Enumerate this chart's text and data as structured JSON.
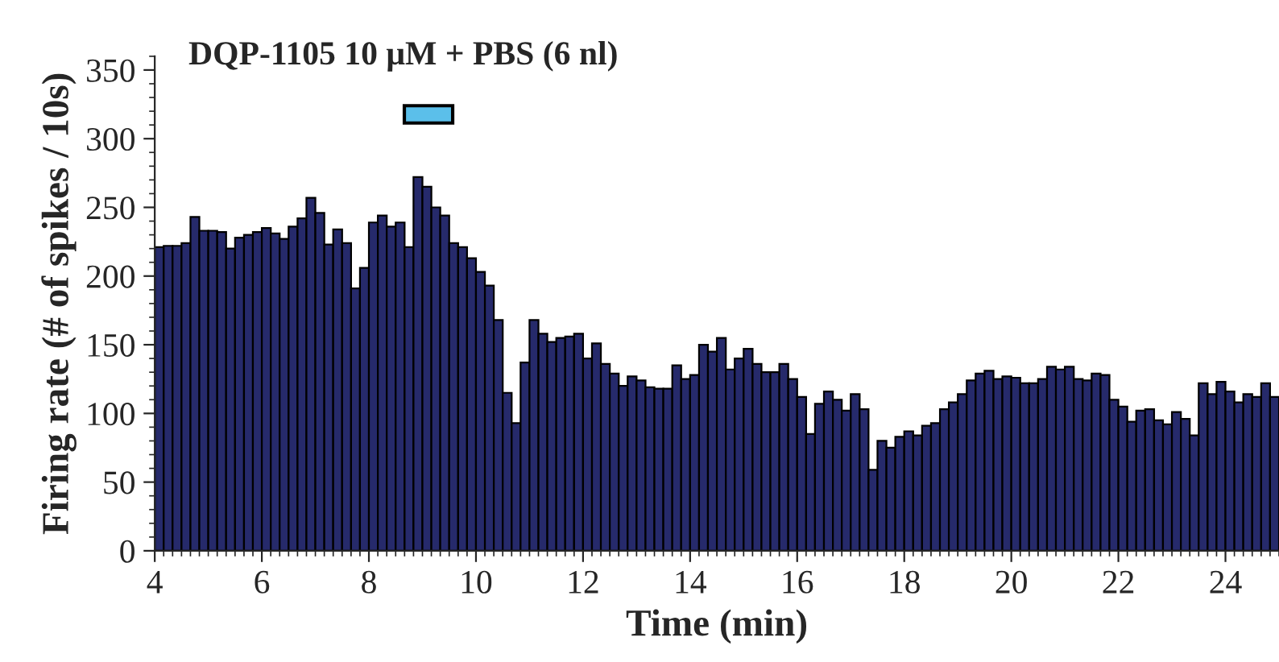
{
  "chart_data": {
    "type": "histogram",
    "title": "DQP-1105 10 μM + PBS (6 nl)",
    "xlabel": "Time (min)",
    "ylabel": "Firing rate (# of spikes / 10s)",
    "bins": [
      4,
      4.167,
      4.333,
      4.5,
      4.667,
      4.833,
      5,
      5.167,
      5.333,
      5.5,
      5.667,
      5.833,
      6,
      6.167,
      6.333,
      6.5,
      6.667,
      6.833,
      7,
      7.167,
      7.333,
      7.5,
      7.667,
      7.833,
      8,
      8.167,
      8.333,
      8.5,
      8.667,
      8.833,
      9,
      9.167,
      9.333,
      9.5,
      9.667,
      9.833,
      10,
      10.167,
      10.333,
      10.5,
      10.667,
      10.833,
      11,
      11.167,
      11.333,
      11.5,
      11.667,
      11.833,
      12,
      12.167,
      12.333,
      12.5,
      12.667,
      12.833,
      13,
      13.167,
      13.333,
      13.5,
      13.667,
      13.833,
      14,
      14.167,
      14.333,
      14.5,
      14.667,
      14.833,
      15,
      15.167,
      15.333,
      15.5,
      15.667,
      15.833,
      16,
      16.167,
      16.333,
      16.5,
      16.667,
      16.833,
      17,
      17.167,
      17.333,
      17.5,
      17.667,
      17.833,
      18,
      18.167,
      18.333,
      18.5,
      18.667,
      18.833,
      19,
      19.167,
      19.333,
      19.5,
      19.667,
      19.833,
      20,
      20.167,
      20.333,
      20.5,
      20.667,
      20.833,
      21,
      21.167,
      21.333,
      21.5,
      21.667,
      21.833,
      22,
      22.167,
      22.333,
      22.5,
      22.667,
      22.833,
      23,
      23.167,
      23.333,
      23.5,
      23.667,
      23.833,
      24,
      24.167,
      24.333,
      24.5,
      24.667,
      24.833,
      25
    ],
    "values": [
      221,
      222,
      222,
      224,
      243,
      233,
      233,
      232,
      220,
      228,
      230,
      232,
      235,
      231,
      227,
      236,
      242,
      257,
      246,
      223,
      234,
      224,
      191,
      206,
      239,
      244,
      236,
      239,
      221,
      272,
      265,
      250,
      244,
      224,
      221,
      213,
      203,
      193,
      168,
      115,
      93,
      137,
      168,
      158,
      152,
      155,
      156,
      158,
      140,
      151,
      136,
      129,
      120,
      127,
      124,
      119,
      118,
      118,
      135,
      125,
      128,
      150,
      145,
      155,
      132,
      140,
      147,
      136,
      130,
      130,
      136,
      125,
      112,
      85,
      107,
      116,
      110,
      102,
      114,
      103,
      59,
      80,
      75,
      83,
      87,
      84,
      91,
      93,
      103,
      108,
      114,
      124,
      129,
      131,
      125,
      127,
      126,
      122,
      122,
      125,
      134,
      132,
      134,
      125,
      124,
      129,
      128,
      110,
      105,
      94,
      102,
      103,
      95,
      92,
      101,
      96,
      84,
      122,
      114,
      123,
      116,
      108,
      114,
      112,
      122,
      112
    ],
    "color": "#262a6b",
    "xlim": [
      4,
      25
    ],
    "xticks": [
      4,
      6,
      8,
      10,
      12,
      14,
      16,
      18,
      20,
      22,
      24
    ],
    "ylim": [
      0,
      360
    ],
    "yticks": [
      0,
      50,
      100,
      150,
      200,
      250,
      300,
      350
    ],
    "grid": false
  }
}
